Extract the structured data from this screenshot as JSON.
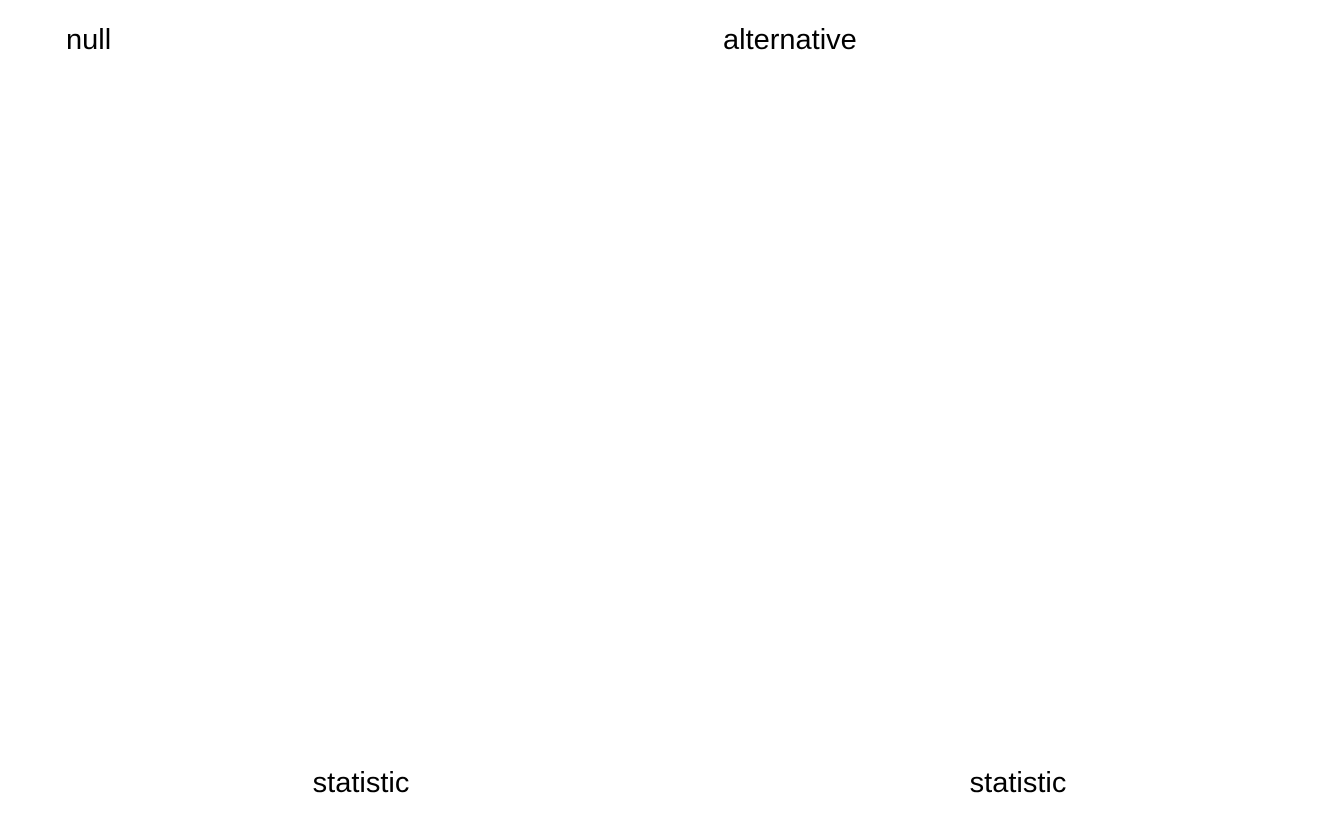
{
  "chart_data": [
    {
      "type": "bar",
      "title": "null",
      "xlabel": "statistic",
      "ylabel": "",
      "series": [],
      "grid": false
    },
    {
      "type": "bar",
      "title": "alternative",
      "xlabel": "statistic",
      "ylabel": "",
      "series": [],
      "grid": false
    }
  ]
}
